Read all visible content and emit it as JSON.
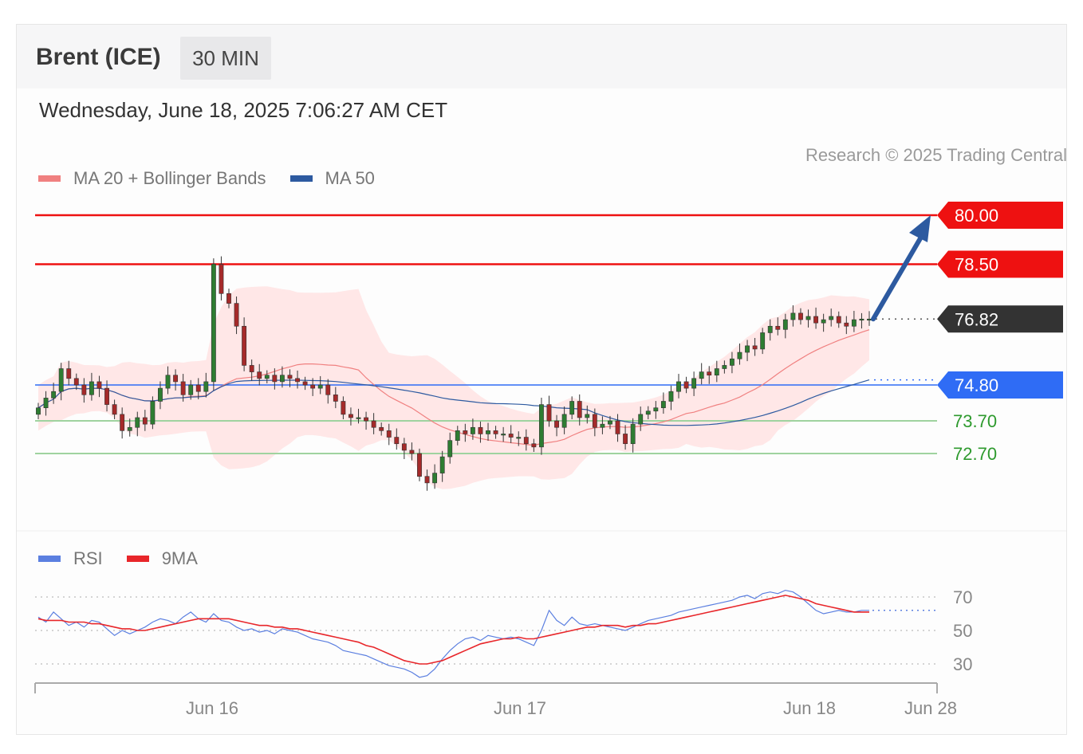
{
  "header": {
    "title": "Brent (ICE)",
    "timeframe": "30 MIN"
  },
  "timestamp": "Wednesday, June 18, 2025 7:06:27 AM CET",
  "legend_main": [
    {
      "label": "MA 20 + Bollinger Bands",
      "color": "#f08080"
    },
    {
      "label": "MA 50",
      "color": "#2d5aa0"
    }
  ],
  "legend_rsi": [
    {
      "label": "RSI",
      "color": "#5b7fe0"
    },
    {
      "label": "9MA",
      "color": "#e8262a"
    }
  ],
  "credit": "Research © 2025 Trading Central",
  "colors": {
    "resistance": "#ee1111",
    "pivot": "#2f6cf5",
    "support": "#9fd39f",
    "support_text": "#2e9a2e",
    "last_price": "#333333",
    "bullish": "#2e7d32",
    "bearish": "#a52a2a",
    "band_fill": "#ffe3e3",
    "ma20": "#f08080",
    "ma50": "#2d5aa0",
    "arrow": "#2d5aa0"
  },
  "chart_data": [
    {
      "type": "candlestick",
      "title": "Brent (ICE)",
      "interval": "30 MIN",
      "x_ticks": [
        "Jun 16",
        "Jun 17",
        "Jun 18",
        "Jun 28"
      ],
      "ylim": [
        71.0,
        80.5
      ],
      "levels": [
        {
          "value": 80.0,
          "label": "80.00",
          "kind": "resistance"
        },
        {
          "value": 78.5,
          "label": "78.50",
          "kind": "resistance"
        },
        {
          "value": 76.82,
          "label": "76.82",
          "kind": "last"
        },
        {
          "value": 74.8,
          "label": "74.80",
          "kind": "pivot"
        },
        {
          "value": 73.7,
          "label": "73.70",
          "kind": "support"
        },
        {
          "value": 72.7,
          "label": "72.70",
          "kind": "support"
        }
      ],
      "forecast": {
        "from": 76.82,
        "to": 80.0,
        "direction": "up"
      },
      "close": [
        74.1,
        74.4,
        74.6,
        75.3,
        75.0,
        74.8,
        74.5,
        74.9,
        74.7,
        74.2,
        73.9,
        73.4,
        73.5,
        73.8,
        73.6,
        74.3,
        74.7,
        75.1,
        74.9,
        74.5,
        74.8,
        74.6,
        74.9,
        78.5,
        77.6,
        77.3,
        76.6,
        75.4,
        75.2,
        75.0,
        75.1,
        74.9,
        75.1,
        75.0,
        74.9,
        74.8,
        74.7,
        74.8,
        74.5,
        74.3,
        73.9,
        73.8,
        73.8,
        73.7,
        73.5,
        73.4,
        73.2,
        73.0,
        72.8,
        72.7,
        72.0,
        71.8,
        72.1,
        72.6,
        73.1,
        73.4,
        73.3,
        73.5,
        73.3,
        73.4,
        73.3,
        73.3,
        73.2,
        73.2,
        73.0,
        72.9,
        74.2,
        73.7,
        73.5,
        73.9,
        74.3,
        73.8,
        73.9,
        73.5,
        73.6,
        73.7,
        73.3,
        73.0,
        73.6,
        73.9,
        74.0,
        74.1,
        74.3,
        74.6,
        74.9,
        74.7,
        75.0,
        75.2,
        75.1,
        75.3,
        75.4,
        75.6,
        75.8,
        76.0,
        75.9,
        76.4,
        76.6,
        76.5,
        76.8,
        77.0,
        76.8,
        76.9,
        76.7,
        76.8,
        76.9,
        76.7,
        76.6,
        76.8,
        76.82,
        76.82
      ]
    },
    {
      "type": "line",
      "title": "RSI",
      "ylim": [
        20,
        80
      ],
      "y_ticks": [
        70,
        50,
        30
      ],
      "series": [
        {
          "name": "RSI",
          "values": [
            58,
            55,
            61,
            57,
            53,
            55,
            52,
            56,
            55,
            51,
            47,
            50,
            48,
            50,
            52,
            55,
            57,
            56,
            54,
            58,
            61,
            57,
            55,
            60,
            56,
            55,
            52,
            50,
            51,
            49,
            50,
            48,
            51,
            50,
            49,
            47,
            45,
            44,
            43,
            41,
            38,
            37,
            36,
            35,
            33,
            31,
            29,
            28,
            27,
            25,
            22,
            23,
            27,
            33,
            38,
            42,
            45,
            46,
            44,
            47,
            46,
            45,
            46,
            45,
            43,
            41,
            50,
            62,
            56,
            53,
            58,
            54,
            53,
            54,
            53,
            52,
            51,
            50,
            52,
            54,
            56,
            57,
            58,
            59,
            61,
            62,
            63,
            64,
            65,
            66,
            67,
            68,
            70,
            71,
            69,
            72,
            73,
            72,
            74,
            73,
            70,
            66,
            62,
            60,
            61,
            62,
            61,
            61,
            62,
            62
          ]
        },
        {
          "name": "9MA",
          "values": [
            57,
            56,
            56,
            56,
            55,
            55,
            55,
            54,
            54,
            53,
            52,
            51,
            51,
            50,
            50,
            51,
            52,
            53,
            54,
            55,
            56,
            57,
            57,
            57,
            57,
            57,
            56,
            55,
            54,
            53,
            53,
            52,
            52,
            51,
            51,
            50,
            49,
            48,
            47,
            46,
            45,
            44,
            43,
            41,
            40,
            38,
            36,
            34,
            32,
            31,
            30,
            30,
            31,
            32,
            34,
            36,
            38,
            40,
            42,
            43,
            44,
            45,
            45,
            46,
            45,
            45,
            46,
            47,
            48,
            49,
            50,
            51,
            52,
            52,
            53,
            53,
            53,
            52,
            53,
            53,
            54,
            54,
            55,
            56,
            57,
            58,
            59,
            60,
            61,
            62,
            63,
            64,
            65,
            66,
            67,
            68,
            69,
            70,
            71,
            70,
            69,
            68,
            66,
            65,
            64,
            63,
            62,
            61,
            61,
            61
          ]
        }
      ],
      "reference_lines": [
        70,
        50,
        30
      ]
    }
  ]
}
